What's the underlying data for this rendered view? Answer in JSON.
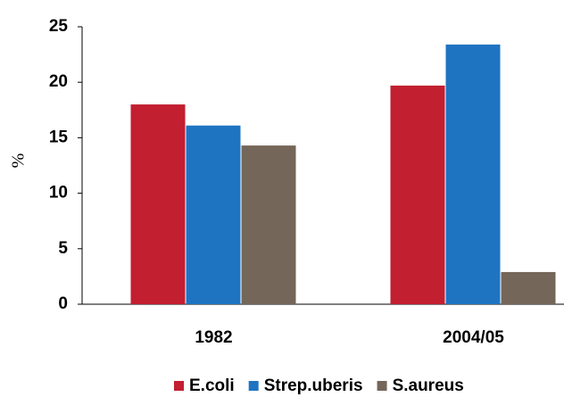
{
  "chart_data": {
    "type": "bar",
    "y_label": "%",
    "categories": [
      "1982",
      "2004/05"
    ],
    "series": [
      {
        "name": "E.coli",
        "color": "#c21f30",
        "values": [
          18,
          19.7
        ]
      },
      {
        "name": "Strep.uberis",
        "color": "#1f74c1",
        "values": [
          16.1,
          23.4
        ]
      },
      {
        "name": "S.aureus",
        "color": "#746658",
        "values": [
          14.3,
          2.9
        ]
      }
    ],
    "ylim": [
      0,
      25
    ],
    "yticks": [
      0,
      5,
      10,
      15,
      20,
      25
    ],
    "grid": false,
    "legend": "bottom"
  }
}
